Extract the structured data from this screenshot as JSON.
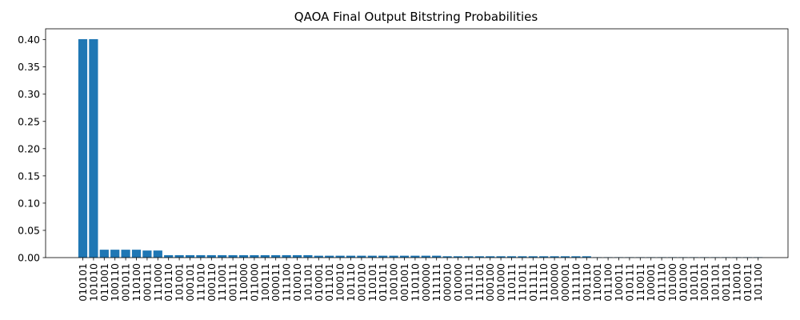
{
  "chart_data": {
    "type": "bar",
    "title": "QAOA Final Output Bitstring Probabilities",
    "xlabel": "",
    "ylabel": "",
    "ylim": [
      0,
      0.42
    ],
    "yticks": [
      "0.00",
      "0.05",
      "0.10",
      "0.15",
      "0.20",
      "0.25",
      "0.30",
      "0.35",
      "0.40"
    ],
    "bar_color": "#1f77b4",
    "grid": false,
    "categories": [
      "010101",
      "101010",
      "011001",
      "100110",
      "001011",
      "110100",
      "000111",
      "111000",
      "010110",
      "101001",
      "000101",
      "111010",
      "000110",
      "111001",
      "001111",
      "110000",
      "011000",
      "100111",
      "000011",
      "111100",
      "010010",
      "101101",
      "010001",
      "011101",
      "100010",
      "101110",
      "001010",
      "110101",
      "011011",
      "100100",
      "001001",
      "110110",
      "000000",
      "111111",
      "000010",
      "010000",
      "101111",
      "111101",
      "000100",
      "001000",
      "110111",
      "111011",
      "011111",
      "111110",
      "100000",
      "000001",
      "111110",
      "001110",
      "110001",
      "011100",
      "100011",
      "010111",
      "110011",
      "100001",
      "011110",
      "101000",
      "010100",
      "101011",
      "100101",
      "101101",
      "001101",
      "110010",
      "010011",
      "101100"
    ],
    "values": [
      0.401,
      0.401,
      0.0145,
      0.0145,
      0.0145,
      0.0145,
      0.013,
      0.013,
      0.0045,
      0.0045,
      0.0045,
      0.0045,
      0.0045,
      0.0045,
      0.0045,
      0.0045,
      0.0045,
      0.0045,
      0.0045,
      0.0045,
      0.0045,
      0.0045,
      0.0035,
      0.0035,
      0.0035,
      0.0035,
      0.0035,
      0.0035,
      0.0035,
      0.0035,
      0.0035,
      0.0035,
      0.0035,
      0.0035,
      0.0025,
      0.0025,
      0.0025,
      0.0025,
      0.0025,
      0.0025,
      0.0025,
      0.0025,
      0.0025,
      0.0025,
      0.0025,
      0.0025,
      0.0025,
      0.0025,
      0.0008,
      0.0008,
      0.0008,
      0.0008,
      0.0008,
      0.0008,
      0.0008,
      0.0008,
      0.0008,
      0.0008,
      0.0008,
      0.0008,
      0.0008,
      0.0008,
      0.0008,
      0.0008
    ]
  }
}
